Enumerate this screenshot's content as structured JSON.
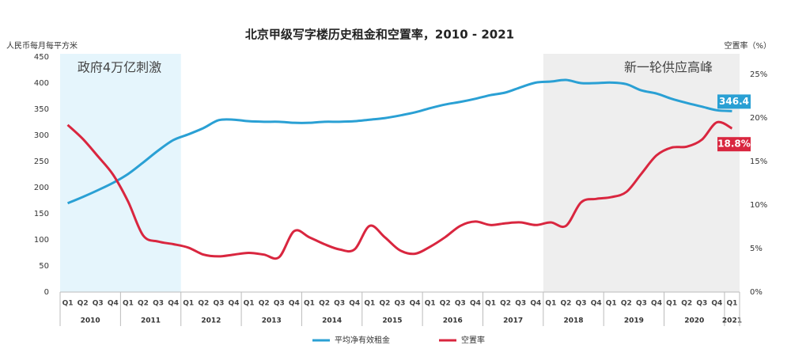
{
  "chart_data": {
    "type": "line",
    "title": "北京甲级写字楼历史租金和空置率，2010 - 2021",
    "ylabel": "人民币每月每平方米",
    "y2label": "空置率（%）",
    "categories": [
      "Q1",
      "Q2",
      "Q3",
      "Q4",
      "Q1",
      "Q2",
      "Q3",
      "Q4",
      "Q1",
      "Q2",
      "Q3",
      "Q4",
      "Q1",
      "Q2",
      "Q3",
      "Q4",
      "Q1",
      "Q2",
      "Q3",
      "Q4",
      "Q1",
      "Q2",
      "Q3",
      "Q4",
      "Q1",
      "Q2",
      "Q3",
      "Q4",
      "Q1",
      "Q2",
      "Q3",
      "Q4",
      "Q1",
      "Q2",
      "Q3",
      "Q4",
      "Q1",
      "Q2",
      "Q3",
      "Q4",
      "Q1",
      "Q2",
      "Q3",
      "Q4",
      "Q1"
    ],
    "x_groups": [
      "2010",
      "2011",
      "2012",
      "2013",
      "2014",
      "2015",
      "2016",
      "2017",
      "2018",
      "2019",
      "2020",
      "2021"
    ],
    "series": [
      {
        "name": "平均净有效租金",
        "color": "#2aa0d4",
        "axis": "y",
        "end_label": "346.4",
        "values": [
          170,
          182,
          195,
          209,
          226,
          248,
          271,
          291,
          302,
          314,
          329,
          330,
          327,
          326,
          326,
          324,
          324,
          326,
          326,
          327,
          330,
          333,
          338,
          344,
          352,
          359,
          364,
          370,
          377,
          382,
          392,
          401,
          403,
          406,
          400,
          400,
          401,
          398,
          386,
          380,
          370,
          362,
          355,
          348,
          346.4
        ]
      },
      {
        "name": "空置率",
        "color": "#d9263f",
        "axis": "y2",
        "end_label": "18.8%",
        "values": [
          19.2,
          17.6,
          15.6,
          13.5,
          10.4,
          6.5,
          5.8,
          5.5,
          5.1,
          4.3,
          4.1,
          4.3,
          4.5,
          4.3,
          4.0,
          7.0,
          6.3,
          5.5,
          4.9,
          4.9,
          7.6,
          6.3,
          4.8,
          4.4,
          5.2,
          6.3,
          7.6,
          8.1,
          7.7,
          7.9,
          8.0,
          7.7,
          8.0,
          7.6,
          10.3,
          10.7,
          10.9,
          11.5,
          13.6,
          15.7,
          16.6,
          16.7,
          17.5,
          19.5,
          18.8
        ]
      }
    ],
    "annotations": [
      "政府4万亿刺激",
      "新一轮供应高峰"
    ],
    "ylim": [
      0,
      450
    ],
    "yticks": [
      0,
      50,
      100,
      150,
      200,
      250,
      300,
      350,
      400,
      450
    ],
    "y2lim": [
      0,
      27
    ],
    "y2ticks": [
      {
        "value": 0,
        "label": "0%"
      },
      {
        "value": 5,
        "label": "5%"
      },
      {
        "value": 10,
        "label": "10%"
      },
      {
        "value": 15,
        "label": "15%"
      },
      {
        "value": 20,
        "label": "20%"
      },
      {
        "value": 25,
        "label": "25%"
      }
    ],
    "legend": "bottom"
  }
}
